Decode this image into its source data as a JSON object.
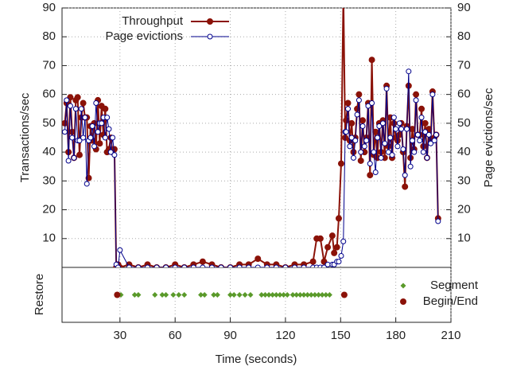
{
  "chart_data": [
    {
      "type": "line",
      "y_label": "Transactions/sec",
      "y2_label": "Page evictions/sec",
      "ylim": [
        0,
        90
      ],
      "yticks": [
        10,
        20,
        30,
        40,
        50,
        60,
        70,
        80,
        90
      ],
      "y2lim": [
        0,
        90
      ],
      "y2ticks": [
        10,
        20,
        30,
        40,
        50,
        60,
        70,
        80,
        90
      ],
      "grid": true,
      "legend": "top-left",
      "x": [
        0,
        1,
        2,
        3,
        4,
        5,
        6,
        7,
        8,
        9,
        10,
        11,
        12,
        13,
        14,
        15,
        16,
        17,
        18,
        19,
        20,
        21,
        22,
        23,
        24,
        25,
        26,
        27,
        28,
        29,
        30,
        35,
        40,
        45,
        50,
        55,
        60,
        65,
        70,
        75,
        80,
        85,
        90,
        95,
        100,
        105,
        110,
        115,
        120,
        125,
        130,
        135,
        137,
        139,
        141,
        143,
        145.5,
        146.5,
        148,
        149,
        150.3,
        151.5,
        152.5,
        153,
        154,
        155,
        156,
        157,
        158,
        159,
        160,
        161,
        162,
        163,
        164,
        165,
        166,
        167,
        168,
        169,
        170,
        171,
        172,
        173,
        174,
        175,
        176,
        177,
        178,
        179,
        180,
        181,
        182,
        183,
        184,
        185,
        186,
        187,
        188,
        189,
        190,
        191,
        192,
        193,
        194,
        195,
        196,
        197,
        198,
        199,
        200,
        201,
        202,
        203
      ],
      "series": [
        {
          "name": "Throughput",
          "color": "#8b1208",
          "marker": "filled",
          "values": [
            50,
            57,
            40,
            59,
            47,
            38,
            58,
            59,
            39,
            52,
            57,
            52,
            52,
            31,
            49,
            44,
            50,
            41,
            58,
            43,
            56,
            46,
            55,
            40,
            41,
            45,
            40,
            41,
            0,
            1,
            0,
            1,
            0,
            1,
            0,
            0,
            1,
            0,
            1,
            2,
            1,
            0,
            0,
            1,
            1,
            3,
            1,
            1,
            0,
            1,
            1,
            2,
            10,
            10,
            2,
            7,
            11,
            5,
            7,
            17,
            36,
            95,
            45,
            51,
            57,
            44,
            50,
            40,
            45,
            55,
            60,
            37,
            51,
            40,
            45,
            57,
            32,
            72,
            39,
            47,
            38,
            50,
            40,
            51,
            38,
            63,
            42,
            52,
            38,
            50,
            45,
            44,
            46,
            50,
            40,
            28,
            49,
            63,
            38,
            48,
            41,
            60,
            46,
            46,
            55,
            42,
            50,
            38,
            48,
            44,
            61,
            45,
            46,
            17
          ]
        },
        {
          "name": "Page evictions",
          "color": "#00008b",
          "marker": "open",
          "axis": "y2",
          "values": [
            47,
            58,
            37,
            56,
            45,
            38,
            55,
            44,
            44,
            55,
            45,
            52,
            29,
            44,
            45,
            49,
            42,
            57,
            47,
            50,
            50,
            52,
            45,
            52,
            48,
            40,
            45,
            39,
            1,
            0,
            6,
            0,
            0,
            0,
            0,
            0,
            0,
            0,
            0,
            0,
            0,
            0,
            0,
            0,
            0,
            0,
            0,
            0,
            0,
            0,
            0,
            0,
            0,
            0,
            0,
            1,
            1,
            1,
            2,
            2,
            4,
            9,
            47,
            47,
            55,
            42,
            45,
            38,
            44,
            53,
            58,
            40,
            49,
            42,
            44,
            56,
            36,
            57,
            40,
            33,
            45,
            49,
            38,
            50,
            43,
            62,
            40,
            45,
            39,
            52,
            48,
            42,
            50,
            48,
            41,
            32,
            48,
            68,
            35,
            44,
            40,
            58,
            46,
            44,
            52,
            40,
            47,
            38,
            46,
            43,
            60,
            44,
            46,
            16
          ]
        }
      ]
    },
    {
      "type": "strip",
      "y_label": "Restore",
      "x_label": "Time (seconds)",
      "xlim": [
        -1.5,
        210
      ],
      "xticks": [
        30,
        60,
        90,
        120,
        150,
        180,
        210
      ],
      "grid": true,
      "legend": "right",
      "series": [
        {
          "name": "Segment",
          "color": "#5a9a2a",
          "marker": "diamond",
          "x": [
            30.5,
            38,
            40,
            49,
            53,
            55,
            59,
            62,
            65,
            74,
            76,
            81,
            83,
            90,
            92,
            95,
            98,
            101,
            107,
            109,
            111,
            113,
            115,
            117,
            119,
            121,
            124,
            126,
            128,
            130,
            132,
            134,
            136,
            138,
            140,
            142,
            144
          ]
        },
        {
          "name": "Begin/End",
          "color": "#8b1208",
          "marker": "circle",
          "x": [
            28.5,
            152
          ]
        }
      ]
    }
  ]
}
